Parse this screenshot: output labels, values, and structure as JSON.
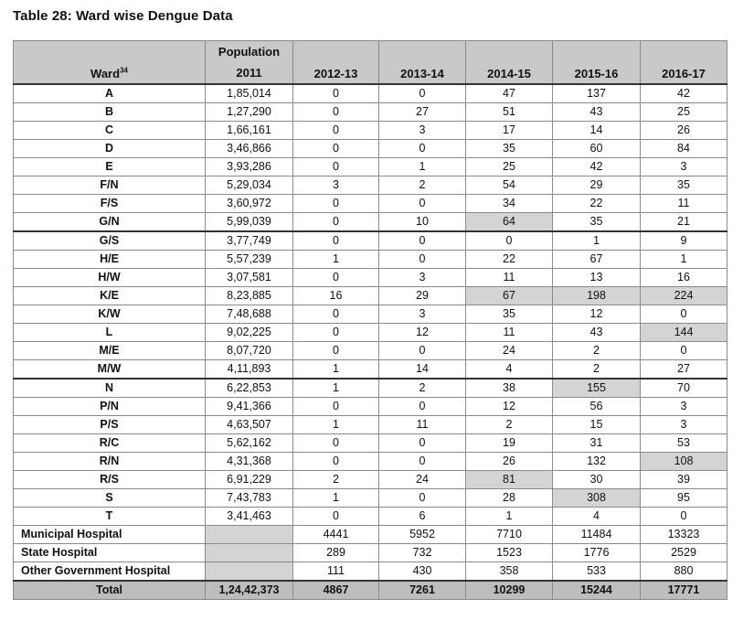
{
  "title": "Table 28: Ward wise Dengue Data",
  "header": {
    "ward": "Ward",
    "ward_sup": "34",
    "population_line1": "Population",
    "population_line2": "2011",
    "years": [
      "2012-13",
      "2013-14",
      "2014-15",
      "2015-16",
      "2016-17"
    ]
  },
  "rows": [
    {
      "ward": "A",
      "pop": "1,85,014",
      "v": [
        "0",
        "0",
        "47",
        "137",
        "42"
      ]
    },
    {
      "ward": "B",
      "pop": "1,27,290",
      "v": [
        "0",
        "27",
        "51",
        "43",
        "25"
      ]
    },
    {
      "ward": "C",
      "pop": "1,66,161",
      "v": [
        "0",
        "3",
        "17",
        "14",
        "26"
      ]
    },
    {
      "ward": "D",
      "pop": "3,46,866",
      "v": [
        "0",
        "0",
        "35",
        "60",
        "84"
      ]
    },
    {
      "ward": "E",
      "pop": "3,93,286",
      "v": [
        "0",
        "1",
        "25",
        "42",
        "3"
      ]
    },
    {
      "ward": "F/N",
      "pop": "5,29,034",
      "v": [
        "3",
        "2",
        "54",
        "29",
        "35"
      ]
    },
    {
      "ward": "F/S",
      "pop": "3,60,972",
      "v": [
        "0",
        "0",
        "34",
        "22",
        "11"
      ]
    },
    {
      "ward": "G/N",
      "pop": "5,99,039",
      "v": [
        "0",
        "10",
        "64",
        "35",
        "21"
      ]
    },
    {
      "ward": "G/S",
      "pop": "3,77,749",
      "v": [
        "0",
        "0",
        "0",
        "1",
        "9"
      ]
    },
    {
      "ward": "H/E",
      "pop": "5,57,239",
      "v": [
        "1",
        "0",
        "22",
        "67",
        "1"
      ]
    },
    {
      "ward": "H/W",
      "pop": "3,07,581",
      "v": [
        "0",
        "3",
        "11",
        "13",
        "16"
      ]
    },
    {
      "ward": "K/E",
      "pop": "8,23,885",
      "v": [
        "16",
        "29",
        "67",
        "198",
        "224"
      ]
    },
    {
      "ward": "K/W",
      "pop": "7,48,688",
      "v": [
        "0",
        "3",
        "35",
        "12",
        "0"
      ]
    },
    {
      "ward": "L",
      "pop": "9,02,225",
      "v": [
        "0",
        "12",
        "11",
        "43",
        "144"
      ]
    },
    {
      "ward": "M/E",
      "pop": "8,07,720",
      "v": [
        "0",
        "0",
        "24",
        "2",
        "0"
      ]
    },
    {
      "ward": "M/W",
      "pop": "4,11,893",
      "v": [
        "1",
        "14",
        "4",
        "2",
        "27"
      ]
    },
    {
      "ward": "N",
      "pop": "6,22,853",
      "v": [
        "1",
        "2",
        "38",
        "155",
        "70"
      ]
    },
    {
      "ward": "P/N",
      "pop": "9,41,366",
      "v": [
        "0",
        "0",
        "12",
        "56",
        "3"
      ]
    },
    {
      "ward": "P/S",
      "pop": "4,63,507",
      "v": [
        "1",
        "11",
        "2",
        "15",
        "3"
      ]
    },
    {
      "ward": "R/C",
      "pop": "5,62,162",
      "v": [
        "0",
        "0",
        "19",
        "31",
        "53"
      ]
    },
    {
      "ward": "R/N",
      "pop": "4,31,368",
      "v": [
        "0",
        "0",
        "26",
        "132",
        "108"
      ]
    },
    {
      "ward": "R/S",
      "pop": "6,91,229",
      "v": [
        "2",
        "24",
        "81",
        "30",
        "39"
      ]
    },
    {
      "ward": "S",
      "pop": "7,43,783",
      "v": [
        "1",
        "0",
        "28",
        "308",
        "95"
      ]
    },
    {
      "ward": "T",
      "pop": "3,41,463",
      "v": [
        "0",
        "6",
        "1",
        "4",
        "0"
      ]
    }
  ],
  "hospitals": [
    {
      "name": "Municipal Hospital",
      "v": [
        "4441",
        "5952",
        "7710",
        "11484",
        "13323"
      ]
    },
    {
      "name": "State Hospital",
      "v": [
        "289",
        "732",
        "1523",
        "1776",
        "2529"
      ]
    },
    {
      "name": "Other Government Hospital",
      "v": [
        "111",
        "430",
        "358",
        "533",
        "880"
      ]
    }
  ],
  "total": {
    "label": "Total",
    "pop": "1,24,42,373",
    "v": [
      "4867",
      "7261",
      "10299",
      "15244",
      "17771"
    ]
  }
}
